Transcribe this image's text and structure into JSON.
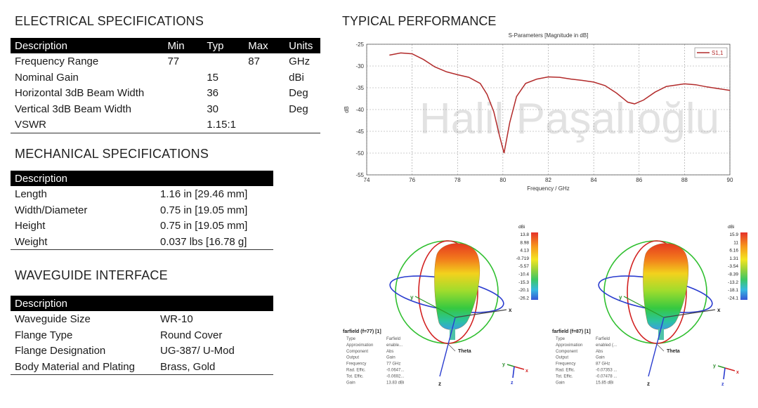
{
  "electrical": {
    "title": "ELECTRICAL SPECIFICATIONS",
    "headers": [
      "Description",
      "Min",
      "Typ",
      "Max",
      "Units"
    ],
    "rows": [
      [
        "Frequency Range",
        "77",
        "",
        "87",
        "GHz"
      ],
      [
        "Nominal Gain",
        "",
        "15",
        "",
        "dBi"
      ],
      [
        "Horizontal 3dB Beam Width",
        "",
        "36",
        "",
        "Deg"
      ],
      [
        "Vertical 3dB Beam Width",
        "",
        "30",
        "",
        "Deg"
      ],
      [
        "VSWR",
        "",
        "1.15:1",
        "",
        ""
      ]
    ]
  },
  "mechanical": {
    "title": "MECHANICAL SPECIFICATIONS",
    "header": "Description",
    "rows": [
      [
        "Length",
        "1.16 in [29.46 mm]"
      ],
      [
        "Width/Diameter",
        "0.75 in [19.05 mm]"
      ],
      [
        "Height",
        "0.75 in [19.05 mm]"
      ],
      [
        "Weight",
        "0.037 lbs [16.78 g]"
      ]
    ]
  },
  "waveguide": {
    "title": "WAVEGUIDE INTERFACE",
    "header": "Description",
    "rows": [
      [
        "Waveguide Size",
        "WR-10"
      ],
      [
        "Flange Type",
        "Round Cover"
      ],
      [
        "Flange Designation",
        "UG-387/ U-Mod"
      ],
      [
        "Body Material and Plating",
        "Brass, Gold"
      ]
    ]
  },
  "performance": {
    "title": "TYPICAL PERFORMANCE",
    "watermark": "Halil Paşalıoğlu"
  },
  "chart_data": {
    "type": "line",
    "title": "S-Parameters [Magnitude in dB]",
    "xlabel": "Frequency / GHz",
    "ylabel": "dB",
    "xlim": [
      74,
      90
    ],
    "ylim": [
      -55,
      -25
    ],
    "xticks": [
      74,
      76,
      78,
      80,
      82,
      84,
      86,
      88,
      90
    ],
    "yticks": [
      -25,
      -30,
      -35,
      -40,
      -45,
      -50,
      -55
    ],
    "grid": true,
    "legend": "top-right",
    "color": "#b22a2a",
    "series": [
      {
        "name": "S1,1",
        "x": [
          75,
          75.5,
          76,
          76.5,
          77,
          77.5,
          78,
          78.5,
          79,
          79.3,
          79.6,
          79.85,
          80.05,
          80.3,
          80.6,
          81,
          81.5,
          82,
          82.5,
          83,
          83.5,
          84,
          84.5,
          85,
          85.5,
          85.8,
          86.2,
          86.7,
          87.2,
          88,
          88.5,
          89,
          89.5,
          90
        ],
        "y": [
          -27.5,
          -27,
          -27.2,
          -28.5,
          -30.2,
          -31.3,
          -32,
          -32.6,
          -34,
          -36.5,
          -40.5,
          -46,
          -50,
          -43,
          -37,
          -34,
          -33,
          -32.5,
          -32.6,
          -33,
          -33.3,
          -33.7,
          -34.5,
          -36.2,
          -38.3,
          -38.7,
          -37.8,
          -36,
          -34.7,
          -34.1,
          -34.3,
          -34.8,
          -35.2,
          -35.6
        ]
      }
    ]
  },
  "farfield_left": {
    "scale_unit": "dBi",
    "scale": [
      "13.8",
      "8.98",
      "4.13",
      "-0.719",
      "-5.57",
      "-10.4",
      "-15.3",
      "-20.1",
      "-26.2"
    ],
    "title": "farfield (f=77) [1]",
    "props": [
      [
        "Type",
        "Farfield"
      ],
      [
        "Approximation",
        "enable..."
      ],
      [
        "Component",
        "Abs"
      ],
      [
        "Output",
        "Gain"
      ],
      [
        "Frequency",
        "77 GHz"
      ],
      [
        "Rad. Effic.",
        "-0.0647..."
      ],
      [
        "Tot. Effic.",
        "-0.0692..."
      ],
      [
        "Gain",
        "13.83 dBi"
      ]
    ],
    "axis_x": "x",
    "axis_y": "y",
    "axis_z": "z",
    "theta": "Theta"
  },
  "farfield_right": {
    "scale_unit": "dBi",
    "scale": [
      "15.9",
      "11",
      "6.16",
      "1.31",
      "-3.54",
      "-8.39",
      "-13.2",
      "-18.1",
      "-24.1"
    ],
    "title": "farfield (f=87) [1]",
    "props": [
      [
        "Type",
        "Farfield"
      ],
      [
        "Approximation",
        "enabled (..."
      ],
      [
        "Component",
        "Abs"
      ],
      [
        "Output",
        "Gain"
      ],
      [
        "Frequency",
        "87 GHz"
      ],
      [
        "Rad. Effic.",
        "-0.07353 ..."
      ],
      [
        "Tot. Effic.",
        "-0.07478 ..."
      ],
      [
        "Gain",
        "15.85 dBi"
      ]
    ],
    "axis_x": "x",
    "axis_y": "y",
    "axis_z": "z",
    "theta": "Theta"
  }
}
